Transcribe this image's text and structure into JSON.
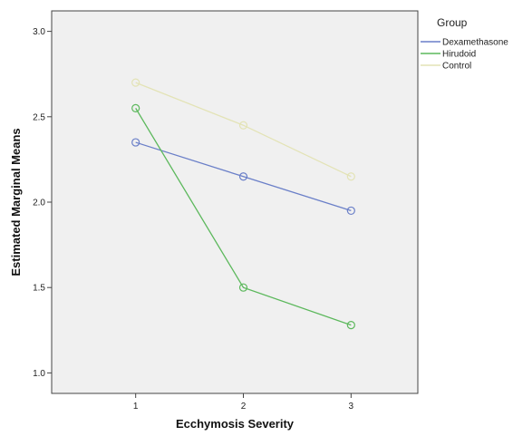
{
  "chart_data": {
    "type": "line",
    "title": "",
    "xlabel": "Ecchymosis Severity",
    "ylabel": "Estimated Marginal Means",
    "categories": [
      "1",
      "2",
      "3"
    ],
    "x": [
      1,
      2,
      3
    ],
    "xlim": [
      0.22,
      3.62
    ],
    "ylim": [
      0.88,
      3.12
    ],
    "yticks": [
      1.0,
      1.5,
      2.0,
      2.5,
      3.0
    ],
    "ytick_labels": [
      "1.0",
      "1.5",
      "2.0",
      "2.5",
      "3.0"
    ],
    "grid": false,
    "background": "#f0f0f0",
    "legend": {
      "title": "Group",
      "placement": "right"
    },
    "series": [
      {
        "name": "Dexamethasone",
        "color": "#6a7fc8",
        "marker": "open-circle",
        "values": [
          2.35,
          2.15,
          1.95
        ]
      },
      {
        "name": "Hirudoid",
        "color": "#5cb85c",
        "marker": "open-circle",
        "values": [
          2.55,
          1.5,
          1.28
        ]
      },
      {
        "name": "Control",
        "color": "#e3e3b6",
        "marker": "open-circle",
        "values": [
          2.7,
          2.45,
          2.15
        ]
      }
    ]
  }
}
